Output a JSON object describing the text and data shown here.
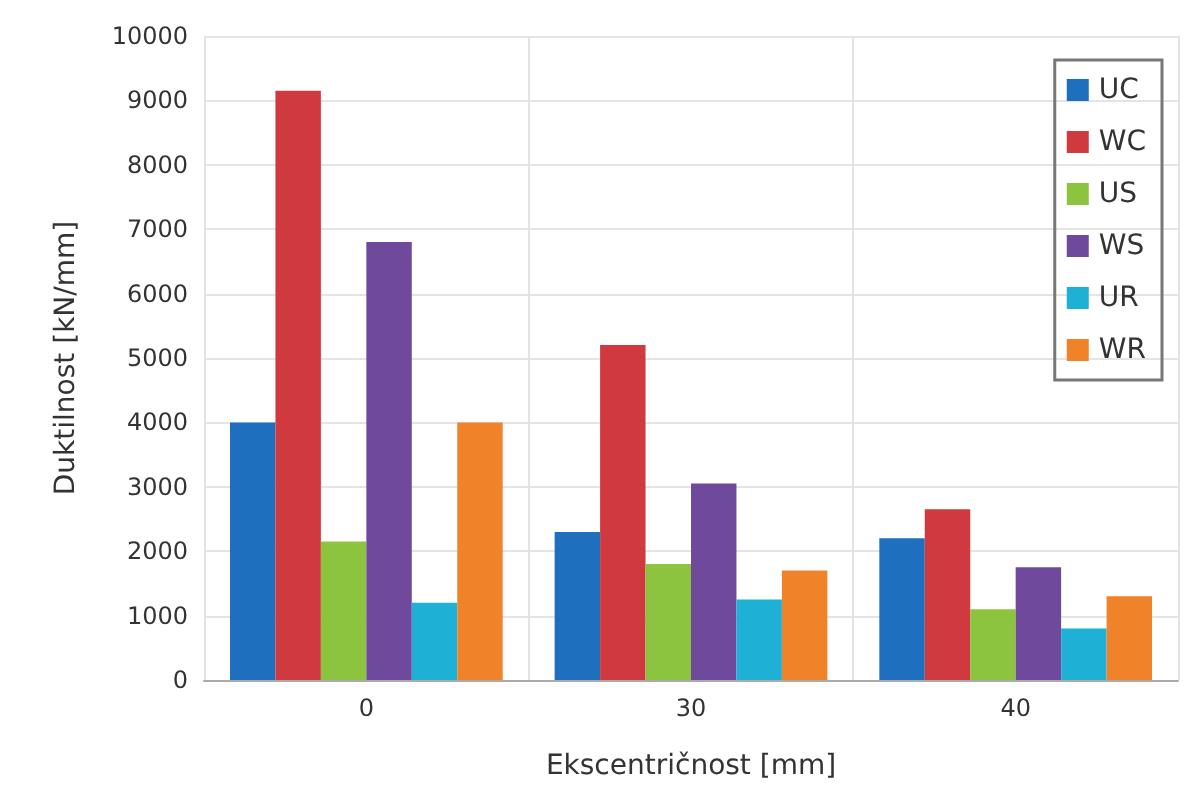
{
  "chart_data": {
    "type": "bar",
    "xlabel": "Ekscentričnost [mm]",
    "ylabel": "Duktilnost [kN/mm]",
    "categories": [
      "0",
      "30",
      "40"
    ],
    "series": [
      {
        "name": "UC",
        "color": "#1f6fbf",
        "values": [
          4000,
          2300,
          2200
        ]
      },
      {
        "name": "WC",
        "color": "#d03a3f",
        "values": [
          9150,
          5200,
          2650
        ]
      },
      {
        "name": "US",
        "color": "#8cc43f",
        "values": [
          2150,
          1800,
          1100
        ]
      },
      {
        "name": "WS",
        "color": "#6f4a9c",
        "values": [
          6800,
          3050,
          1750
        ]
      },
      {
        "name": "UR",
        "color": "#1fb0d6",
        "values": [
          1200,
          1250,
          800
        ]
      },
      {
        "name": "WR",
        "color": "#f0832a",
        "values": [
          4000,
          1700,
          1300
        ]
      }
    ],
    "ylim": [
      0,
      10000
    ],
    "yticks": [
      0,
      1000,
      2000,
      3000,
      4000,
      5000,
      6000,
      7000,
      8000,
      9000,
      10000
    ],
    "grid": true,
    "legend": "top right"
  }
}
